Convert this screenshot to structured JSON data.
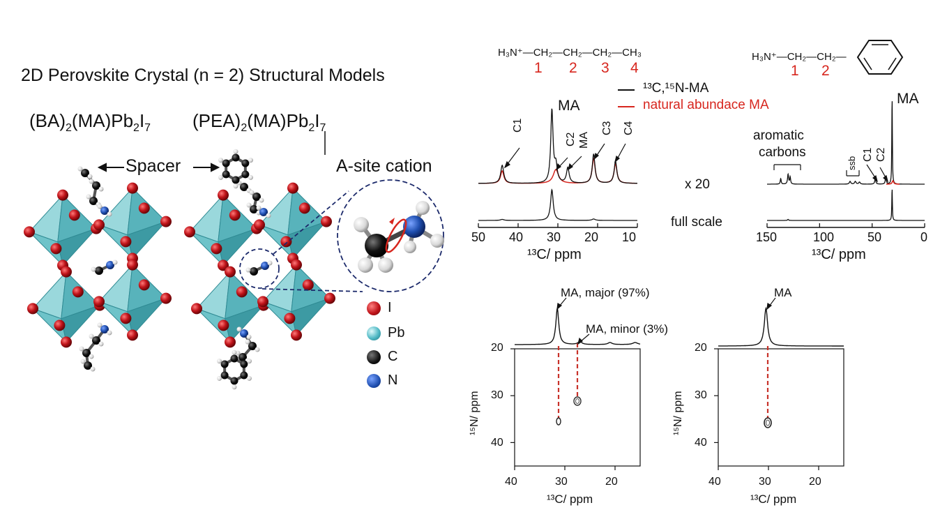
{
  "left": {
    "title": "2D Perovskite Crystal (n = 2) Structural Models",
    "model_ba": {
      "p1": "(BA)",
      "s1": "2",
      "p2": "(MA)Pb",
      "s2": "2",
      "p3": "I",
      "s3": "7"
    },
    "model_pea": {
      "p1": "(PEA)",
      "s1": "2",
      "p2": "(MA)Pb",
      "s2": "2",
      "p3": "I",
      "s3": "7"
    },
    "spacer_label": "Spacer",
    "asite_label": "A-site cation",
    "legend": [
      {
        "label": "I",
        "color": "#c0141a"
      },
      {
        "label": "Pb",
        "color": "#4fb8c4"
      },
      {
        "label": "C",
        "color": "#111111"
      },
      {
        "label": "N",
        "color": "#1f4fb0"
      }
    ],
    "colors": {
      "octahedron": "#6ec3c9",
      "octahedron_dark": "#3d9aa3",
      "iodide": "#c0141a",
      "nitrogen": "#1f4fb0",
      "carbon": "#111111",
      "hydrogen": "#dddddd"
    }
  },
  "c13": {
    "ba_structure": {
      "formula": "H₃N⁺—CH₂—CH₂—CH₂—CH₃",
      "numbers": [
        "1",
        "2",
        "3",
        "4"
      ]
    },
    "pea_structure": {
      "formula": "H₃N⁺—CH₂—CH₂—",
      "numbers": [
        "1",
        "2"
      ]
    },
    "legend": [
      {
        "label": "¹³C,¹⁵N-MA",
        "color": "#111111"
      },
      {
        "label": "natural abundace MA",
        "color": "#d7261e"
      }
    ],
    "left_panel": {
      "peak_labels": [
        "MA",
        "C1",
        "C2",
        "MA",
        "C3",
        "C4"
      ],
      "x_ticks": [
        "50",
        "40",
        "30",
        "20",
        "10"
      ],
      "x_label": "¹³C/ ppm"
    },
    "right_panel": {
      "peak_labels": [
        "MA",
        "aromatic",
        "carbons",
        "ssb",
        "C1",
        "C2"
      ],
      "x_ticks": [
        "150",
        "100",
        "50",
        "0"
      ],
      "x_label": "¹³C/ ppm"
    },
    "scale_labels": [
      "x 20",
      "full scale"
    ]
  },
  "hetcor": {
    "left": {
      "peak_labels": [
        "MA, major (97%)",
        "MA, minor (3%)"
      ],
      "x_ticks": [
        "40",
        "30",
        "20"
      ],
      "y_ticks": [
        "20",
        "30",
        "40"
      ],
      "x_label": "¹³C/ ppm",
      "y_label": "¹⁵N/ ppm"
    },
    "right": {
      "peak_labels": [
        "MA"
      ],
      "x_ticks": [
        "40",
        "30",
        "20"
      ],
      "y_ticks": [
        "20",
        "30",
        "40"
      ],
      "x_label": "¹³C/ ppm",
      "y_label": "¹⁵N/ ppm"
    }
  },
  "chart_data": [
    {
      "type": "line",
      "xlabel": "¹³C/ ppm",
      "xlim": [
        50,
        10
      ],
      "x_ticks": [
        50,
        40,
        30,
        20,
        10
      ],
      "series": [
        {
          "name": "¹³C,¹⁵N-MA",
          "peaks_ppm": [
            44,
            31.5,
            30.5,
            27.5,
            21,
            15.5
          ]
        },
        {
          "name": "natural abundace MA",
          "peaks_ppm": [
            44,
            30.5,
            21,
            15.5
          ]
        }
      ]
    },
    {
      "type": "line",
      "xlabel": "¹³C/ ppm",
      "xlim": [
        150,
        0
      ],
      "x_ticks": [
        150,
        100,
        50,
        0
      ],
      "series": [
        {
          "name": "¹³C,¹⁵N-MA",
          "peaks_ppm": [
            137,
            130,
            128,
            71,
            66,
            62,
            47,
            37,
            31
          ]
        }
      ]
    },
    {
      "type": "scatter",
      "xlabel": "¹³C/ ppm",
      "ylabel": "¹⁵N/ ppm",
      "xlim": [
        40,
        15
      ],
      "ylim": [
        20,
        45
      ],
      "points": [
        {
          "x": 31.5,
          "y": 35.5,
          "label": "MA, major (97%)"
        },
        {
          "x": 27,
          "y": 31,
          "label": "MA, minor (3%)"
        }
      ]
    },
    {
      "type": "scatter",
      "xlabel": "¹³C/ ppm",
      "ylabel": "¹⁵N/ ppm",
      "xlim": [
        40,
        15
      ],
      "ylim": [
        20,
        45
      ],
      "points": [
        {
          "x": 30.5,
          "y": 35.7,
          "label": "MA"
        }
      ]
    }
  ]
}
